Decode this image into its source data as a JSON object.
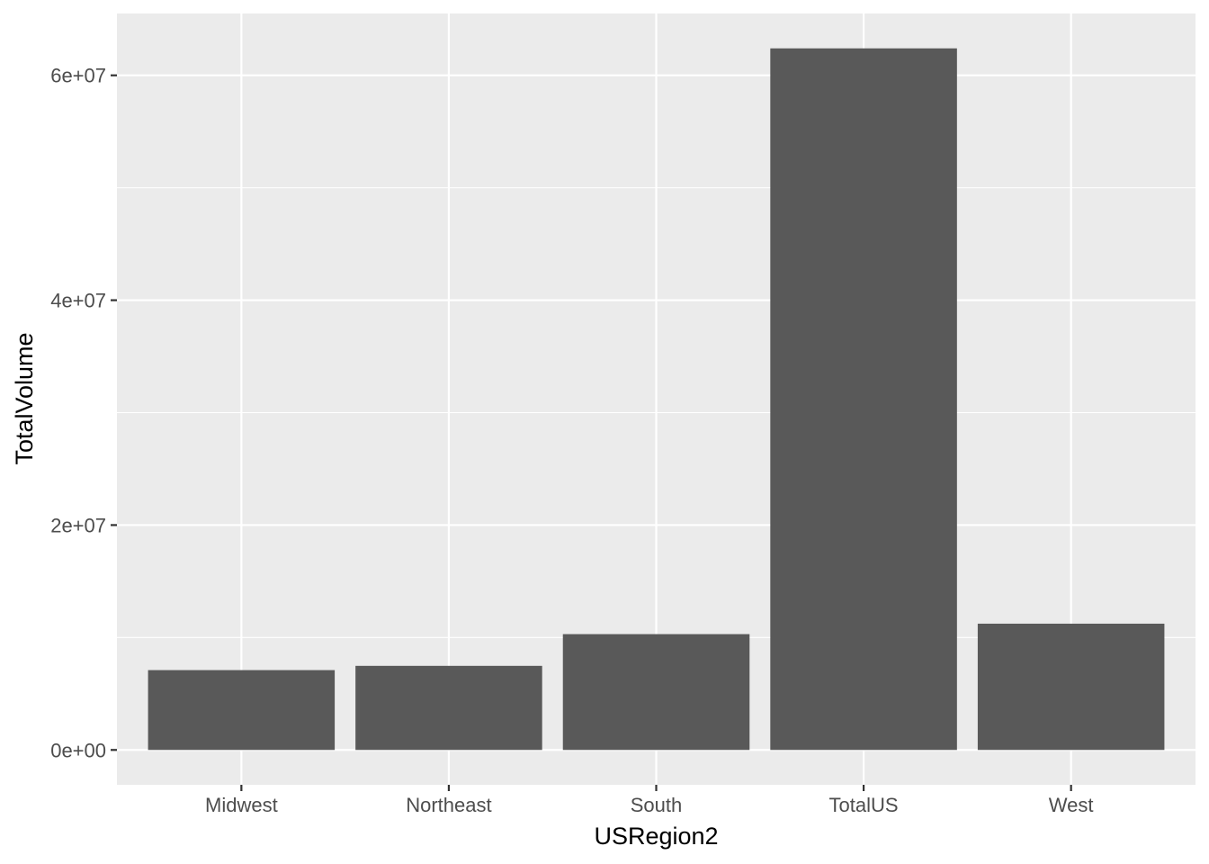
{
  "chart_data": {
    "type": "bar",
    "title": "",
    "xlabel": "USRegion2",
    "ylabel": "TotalVolume",
    "categories": [
      "Midwest",
      "Northeast",
      "South",
      "TotalUS",
      "West"
    ],
    "values": [
      7100000,
      7480000,
      10300000,
      62400000,
      11230000
    ],
    "ylim": [
      -3100000,
      65500000
    ],
    "yticks": [
      0,
      20000000,
      40000000,
      60000000
    ],
    "ytick_labels": [
      "0e+00",
      "2e+07",
      "4e+07",
      "6e+07"
    ],
    "grid": true,
    "legend": "none",
    "colors": {
      "panel_background": "#ebebeb",
      "grid": "#ffffff",
      "bar_fill": "#595959",
      "tick_mark": "#333333",
      "tick_label": "#4d4d4d",
      "axis_title": "#000000"
    }
  }
}
